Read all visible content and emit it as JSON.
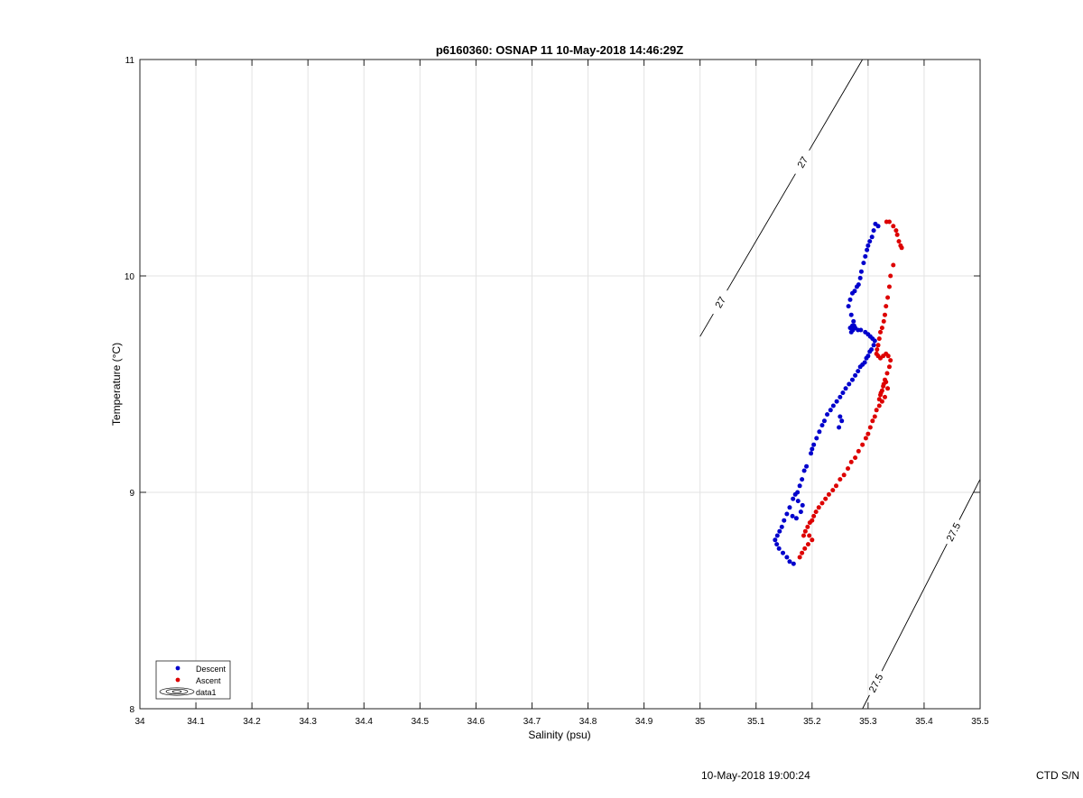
{
  "footer": {
    "timestamp": "10-May-2018 19:00:24",
    "ctd_label": "CTD S/N"
  },
  "colors": {
    "descent": "#0000cc",
    "ascent": "#dd0000",
    "grid": "#e3e3e3",
    "axis": "#222222",
    "contour": "#000000"
  },
  "chart_data": {
    "type": "scatter",
    "title": "p6160360: OSNAP 11 10-May-2018 14:46:29Z",
    "xlabel": "Salinity (psu)",
    "ylabel": "Temperature (°C)",
    "xlim": [
      34,
      35.5
    ],
    "ylim": [
      8,
      11
    ],
    "x_ticks": [
      34,
      34.1,
      34.2,
      34.3,
      34.4,
      34.5,
      34.6,
      34.7,
      34.8,
      34.9,
      35,
      35.1,
      35.2,
      35.3,
      35.4,
      35.5
    ],
    "x_tick_labels": [
      "34",
      "34.1",
      "34.2",
      "34.3",
      "34.4",
      "34.5",
      "34.6",
      "34.7",
      "34.8",
      "34.9",
      "35",
      "35.1",
      "35.2",
      "35.3",
      "35.4",
      "35.5"
    ],
    "y_ticks": [
      8,
      9,
      10,
      11
    ],
    "y_tick_labels": [
      "8",
      "9",
      "10",
      "11"
    ],
    "grid": true,
    "legend": {
      "placement": "bottom-left",
      "entries": [
        "Descent",
        "Ascent",
        "data1"
      ]
    },
    "contours": [
      {
        "label": "27",
        "points": [
          [
            35.0,
            9.72
          ],
          [
            35.29,
            11.0
          ]
        ],
        "labels_at": [
          [
            35.035,
            9.88
          ],
          [
            35.18,
            10.53
          ]
        ]
      },
      {
        "label": "27.5",
        "points": [
          [
            35.29,
            8.0
          ],
          [
            35.5,
            9.06
          ]
        ],
        "labels_at": [
          [
            35.305,
            8.13
          ],
          [
            35.465,
            8.8
          ]
        ]
      }
    ],
    "series": [
      {
        "name": "Descent",
        "x": [
          35.313,
          35.318,
          35.31,
          35.307,
          35.303,
          35.3,
          35.298,
          35.295,
          35.292,
          35.288,
          35.286,
          35.283,
          35.28,
          35.276,
          35.272,
          35.268,
          35.265,
          35.27,
          35.274,
          35.272,
          35.268,
          35.27,
          35.275,
          35.272,
          35.27,
          35.273,
          35.277,
          35.282,
          35.287,
          35.295,
          35.3,
          35.304,
          35.308,
          35.312,
          35.31,
          35.306,
          35.303,
          35.3,
          35.297,
          35.294,
          35.29,
          35.286,
          35.282,
          35.277,
          35.272,
          35.266,
          35.26,
          35.255,
          35.25,
          35.244,
          35.238,
          35.233,
          35.227,
          35.222,
          35.218,
          35.25,
          35.253,
          35.248,
          35.213,
          35.208,
          35.203,
          35.2,
          35.198,
          35.19,
          35.186,
          35.182,
          35.178,
          35.174,
          35.17,
          35.166,
          35.175,
          35.183,
          35.18,
          35.172,
          35.165,
          35.16,
          35.155,
          35.15,
          35.146,
          35.142,
          35.138,
          35.134,
          35.137,
          35.141,
          35.148,
          35.155,
          35.16,
          35.167
        ],
        "y": [
          10.24,
          10.23,
          10.21,
          10.18,
          10.16,
          10.14,
          10.12,
          10.09,
          10.06,
          10.02,
          9.99,
          9.96,
          9.95,
          9.93,
          9.92,
          9.89,
          9.86,
          9.82,
          9.79,
          9.77,
          9.76,
          9.76,
          9.77,
          9.75,
          9.74,
          9.75,
          9.76,
          9.75,
          9.75,
          9.74,
          9.73,
          9.72,
          9.71,
          9.7,
          9.68,
          9.66,
          9.65,
          9.63,
          9.62,
          9.6,
          9.59,
          9.58,
          9.56,
          9.54,
          9.52,
          9.5,
          9.48,
          9.46,
          9.44,
          9.42,
          9.4,
          9.38,
          9.36,
          9.33,
          9.31,
          9.35,
          9.33,
          9.3,
          9.28,
          9.25,
          9.22,
          9.2,
          9.18,
          9.12,
          9.1,
          9.06,
          9.03,
          9.0,
          8.99,
          8.97,
          8.96,
          8.94,
          8.91,
          8.88,
          8.89,
          8.93,
          8.9,
          8.87,
          8.84,
          8.82,
          8.8,
          8.78,
          8.76,
          8.74,
          8.72,
          8.7,
          8.68,
          8.67
        ]
      },
      {
        "name": "Ascent",
        "x": [
          35.333,
          35.338,
          35.345,
          35.35,
          35.352,
          35.355,
          35.358,
          35.36,
          35.345,
          35.34,
          35.338,
          35.335,
          35.332,
          35.33,
          35.328,
          35.325,
          35.322,
          35.32,
          35.318,
          35.316,
          35.315,
          35.318,
          35.322,
          35.327,
          35.332,
          35.336,
          35.34,
          35.338,
          35.334,
          35.33,
          35.328,
          35.325,
          35.322,
          35.32,
          35.323,
          35.327,
          35.332,
          35.335,
          35.33,
          35.325,
          35.32,
          35.315,
          35.312,
          35.308,
          35.304,
          35.3,
          35.296,
          35.29,
          35.283,
          35.277,
          35.27,
          35.264,
          35.257,
          35.25,
          35.243,
          35.237,
          35.23,
          35.224,
          35.218,
          35.212,
          35.207,
          35.203,
          35.2,
          35.196,
          35.192,
          35.188,
          35.185,
          35.195,
          35.2,
          35.193,
          35.187,
          35.182,
          35.178
        ],
        "y": [
          10.25,
          10.25,
          10.23,
          10.21,
          10.19,
          10.16,
          10.14,
          10.13,
          10.05,
          10.0,
          9.95,
          9.9,
          9.86,
          9.82,
          9.79,
          9.76,
          9.74,
          9.71,
          9.68,
          9.66,
          9.64,
          9.63,
          9.62,
          9.63,
          9.64,
          9.63,
          9.61,
          9.58,
          9.55,
          9.52,
          9.5,
          9.47,
          9.45,
          9.43,
          9.46,
          9.49,
          9.51,
          9.48,
          9.44,
          9.42,
          9.4,
          9.38,
          9.35,
          9.33,
          9.3,
          9.27,
          9.25,
          9.22,
          9.19,
          9.16,
          9.14,
          9.11,
          9.08,
          9.06,
          9.03,
          9.01,
          8.99,
          8.97,
          8.95,
          8.93,
          8.91,
          8.89,
          8.87,
          8.86,
          8.84,
          8.82,
          8.8,
          8.8,
          8.78,
          8.76,
          8.74,
          8.72,
          8.7
        ]
      }
    ]
  }
}
